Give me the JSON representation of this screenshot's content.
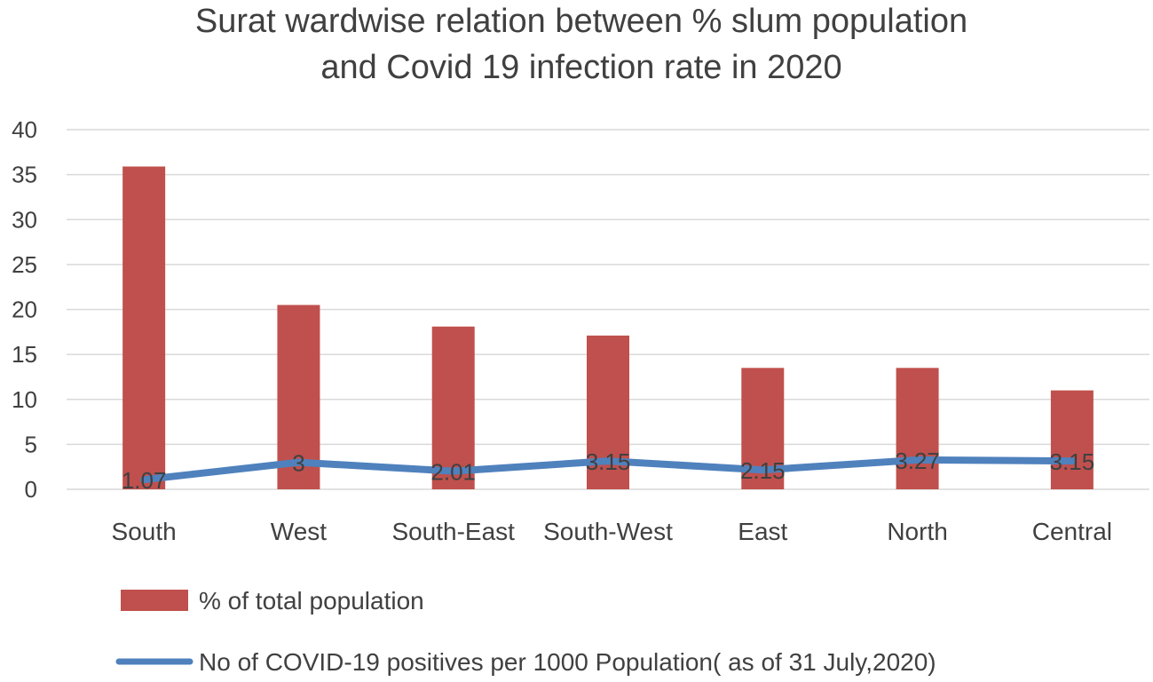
{
  "chart_data": {
    "type": "bar+line",
    "title_lines": [
      "Surat wardwise relation between % slum population",
      "and Covid 19 infection rate in 2020"
    ],
    "categories": [
      "South",
      "West",
      "South-East",
      "South-West",
      "East",
      "North",
      "Central"
    ],
    "series": [
      {
        "name": "% of total population",
        "type": "bar",
        "color": "#c0504d",
        "values": [
          35.9,
          20.5,
          18.1,
          17.1,
          13.5,
          13.5,
          11.0
        ]
      },
      {
        "name": "No of COVID-19 positives per 1000 Population( as of 31 July,2020)",
        "type": "line",
        "color": "#4f81bd",
        "values": [
          1.07,
          3,
          2.01,
          3.15,
          2.15,
          3.27,
          3.15
        ],
        "data_labels": [
          "1.07",
          "3",
          "2.01",
          "3.15",
          "2.15",
          "3.27",
          "3.15"
        ]
      }
    ],
    "ylim": [
      0,
      40
    ],
    "yticks": [
      0,
      5,
      10,
      15,
      20,
      25,
      30,
      35,
      40
    ],
    "grid": true,
    "legend_position": "bottom"
  }
}
